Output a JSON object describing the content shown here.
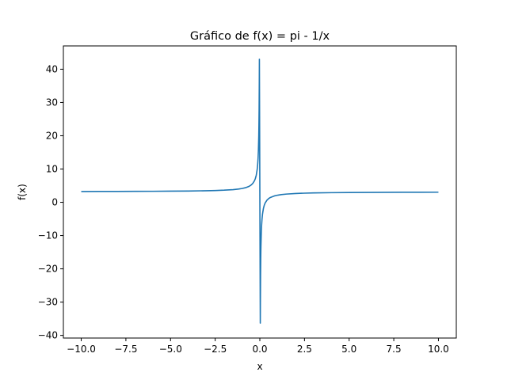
{
  "chart_data": {
    "type": "line",
    "title": "Gráfico de f(x) = pi - 1/x",
    "xlabel": "x",
    "ylabel": "f(x)",
    "xlim": [
      -11.0,
      11.0
    ],
    "ylim": [
      -40.8,
      47.0
    ],
    "xticks": [
      -10.0,
      -7.5,
      -5.0,
      -2.5,
      0.0,
      2.5,
      5.0,
      7.5,
      10.0
    ],
    "xtick_labels": [
      "−10.0",
      "−7.5",
      "−5.0",
      "−2.5",
      "0.0",
      "2.5",
      "5.0",
      "7.5",
      "10.0"
    ],
    "yticks": [
      -40,
      -30,
      -20,
      -10,
      0,
      10,
      20,
      30,
      40
    ],
    "ytick_labels": [
      "−40",
      "−30",
      "−20",
      "−10",
      "0",
      "10",
      "20",
      "30",
      "40"
    ],
    "grid": false,
    "legend": "none",
    "series": [
      {
        "function": "pi - 1/x",
        "color": "#1f77b4",
        "x": [
          -10,
          -9,
          -8,
          -7,
          -6,
          -5,
          -4,
          -3,
          -2.5,
          -2,
          -1.5,
          -1.2,
          -1,
          -0.8,
          -0.6,
          -0.5,
          -0.4,
          -0.3,
          -0.25,
          -0.2,
          -0.15,
          -0.12,
          -0.1,
          -0.08,
          -0.06,
          -0.05,
          -0.04,
          -0.03,
          -0.025,
          -0.0251,
          0.0254,
          0.03,
          0.04,
          0.05,
          0.06,
          0.08,
          0.1,
          0.12,
          0.15,
          0.2,
          0.25,
          0.3,
          0.4,
          0.5,
          0.6,
          0.8,
          1,
          1.2,
          1.5,
          2,
          2.5,
          3,
          4,
          5,
          6,
          7,
          8,
          9,
          10
        ],
        "y": [
          3.242,
          3.253,
          3.267,
          3.284,
          3.308,
          3.342,
          3.392,
          3.475,
          3.542,
          3.642,
          3.808,
          3.975,
          4.142,
          4.392,
          4.808,
          5.142,
          5.642,
          6.475,
          7.142,
          8.142,
          9.808,
          11.475,
          13.142,
          15.642,
          19.808,
          23.142,
          28.142,
          36.475,
          43.0,
          43.0,
          -36.3,
          -30.192,
          -21.858,
          -16.858,
          -13.525,
          -9.358,
          -6.858,
          -5.192,
          -3.525,
          -1.858,
          -0.858,
          -0.192,
          0.642,
          1.142,
          1.475,
          1.892,
          2.142,
          2.308,
          2.475,
          2.642,
          2.742,
          2.808,
          2.892,
          2.942,
          2.975,
          2.999,
          3.017,
          3.031,
          3.042
        ]
      }
    ]
  }
}
